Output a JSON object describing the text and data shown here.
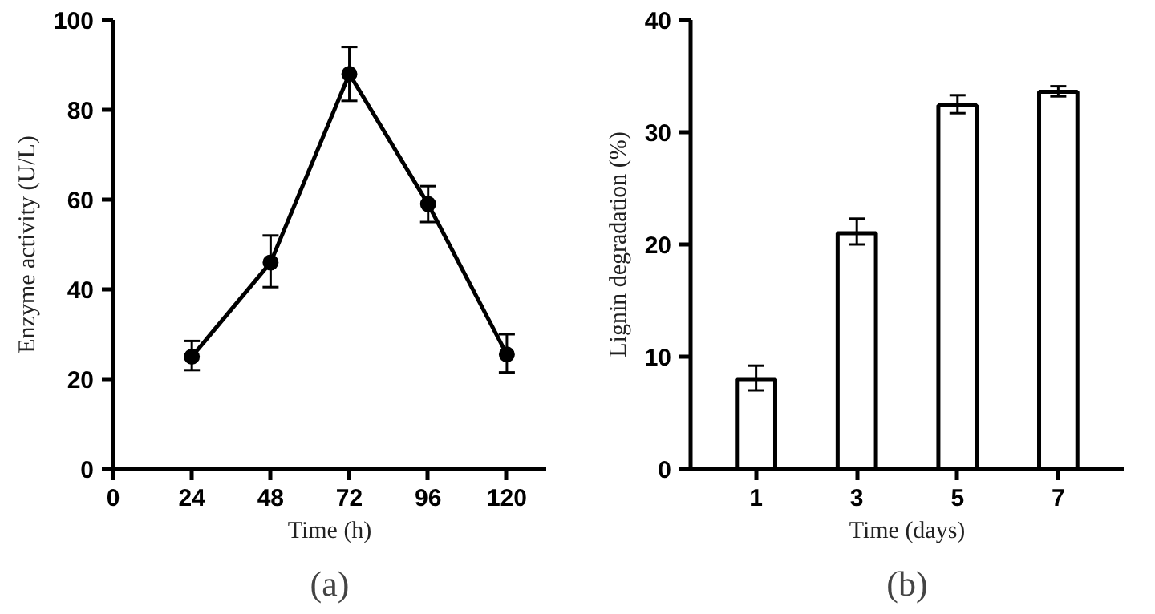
{
  "chart_data": [
    {
      "type": "line",
      "xlabel": "Time (h)",
      "ylabel": "Enzyme activity (U/L)",
      "annotations": [
        "(a)"
      ],
      "x": [
        24,
        48,
        72,
        96,
        120
      ],
      "series": [
        {
          "color": "#000000",
          "values": [
            25,
            46,
            88,
            59,
            25.5
          ],
          "errors": [
            [
              22,
              28.5
            ],
            [
              40.5,
              52
            ],
            [
              82,
              94
            ],
            [
              55,
              63
            ],
            [
              21.5,
              30
            ]
          ]
        }
      ],
      "xlim": [
        0,
        132
      ],
      "xticks": [
        0,
        24,
        48,
        72,
        96,
        120
      ],
      "ylim": [
        0,
        100
      ],
      "yticks": [
        0,
        20,
        40,
        60,
        80,
        100
      ],
      "marker": "circle",
      "line_style": "solid",
      "grid": false
    },
    {
      "type": "bar",
      "xlabel": "Time (days)",
      "ylabel": "Lignin degradation (%)",
      "annotations": [
        "(b)"
      ],
      "categories": [
        "1",
        "3",
        "5",
        "7"
      ],
      "series": [
        {
          "color": "#ffffff",
          "values": [
            8,
            21,
            32.4,
            33.6
          ],
          "errors": [
            [
              7,
              9.2
            ],
            [
              20,
              22.3
            ],
            [
              31.7,
              33.3
            ],
            [
              33.2,
              34.1
            ]
          ]
        }
      ],
      "ylim": [
        0,
        40
      ],
      "yticks": [
        0,
        10,
        20,
        30,
        40
      ],
      "grid": false
    }
  ]
}
